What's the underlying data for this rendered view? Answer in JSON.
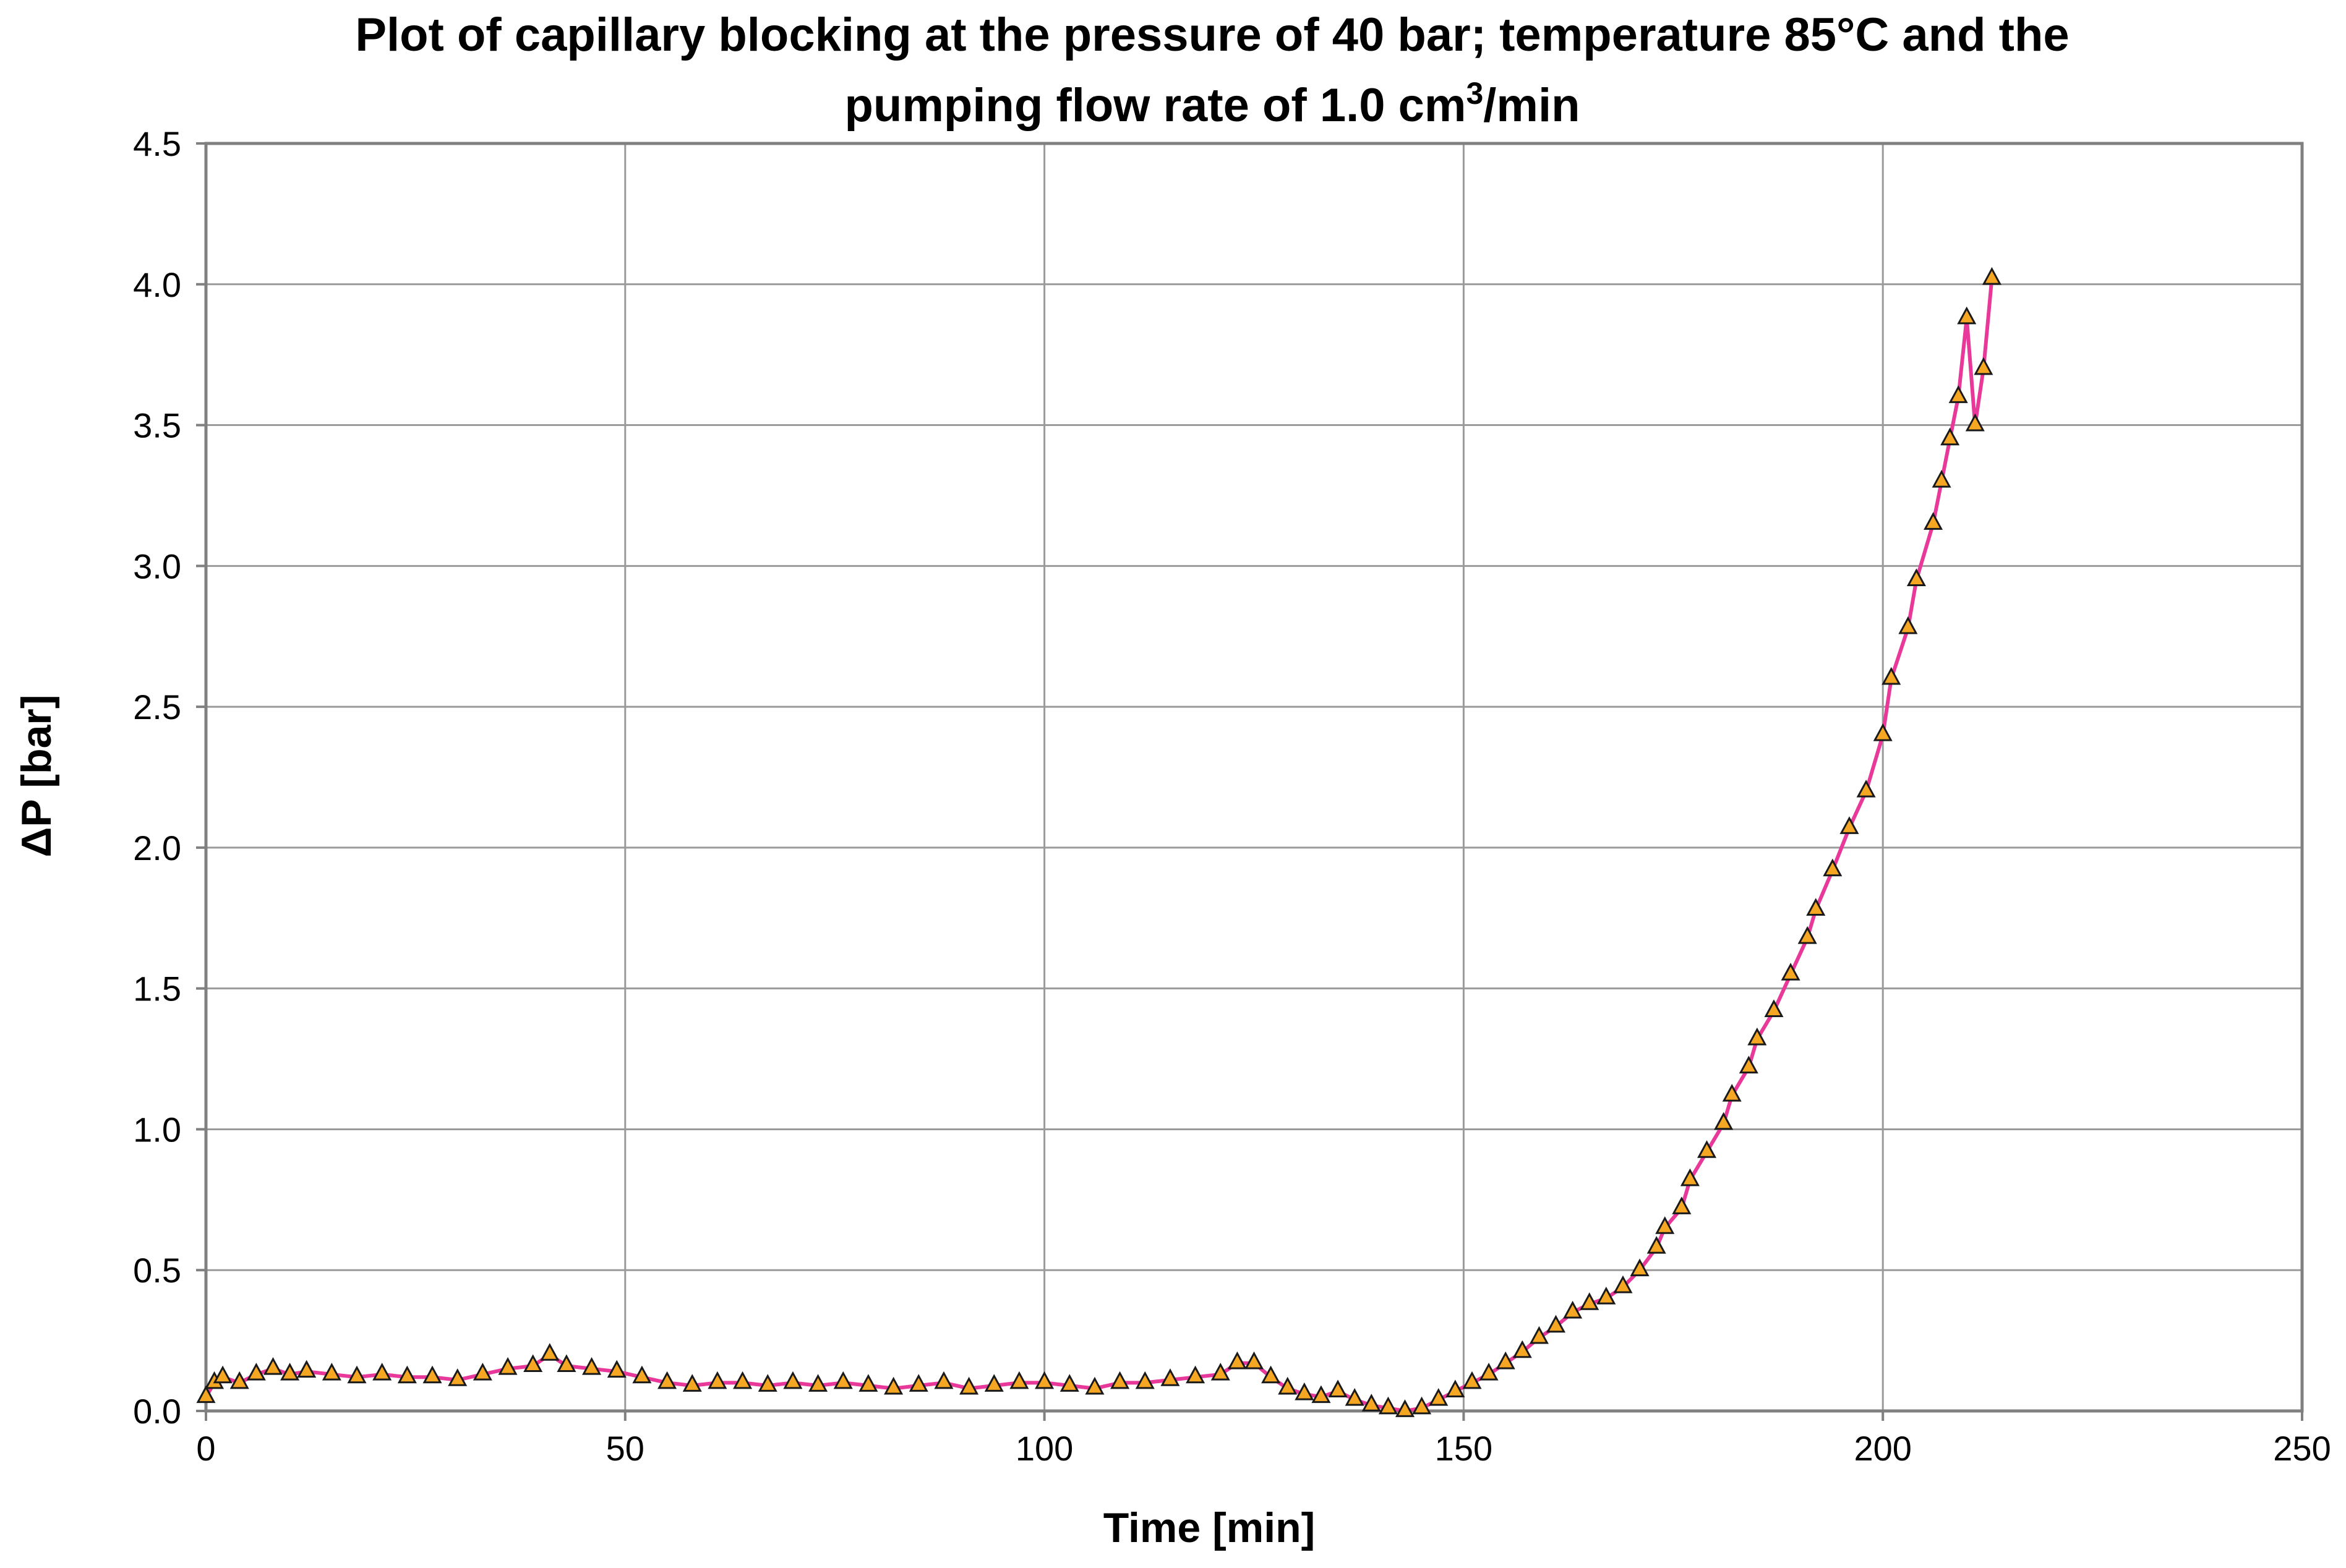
{
  "chart_data": {
    "type": "line",
    "title_line1": "Plot of capillary blocking at the pressure of 40 bar; temperature 85°C and the",
    "title_line2_prefix": "pumping flow rate of 1.0 cm",
    "title_superscript": "3",
    "title_line2_suffix": "/min",
    "xlabel": "Time [min]",
    "ylabel": "ΔP [bar]",
    "xlim": [
      0,
      250
    ],
    "ylim": [
      0,
      4.5
    ],
    "x_ticks": [
      "0",
      "50",
      "100",
      "150",
      "200",
      "250"
    ],
    "y_ticks": [
      "0.0",
      "0.5",
      "1.0",
      "1.5",
      "2.0",
      "2.5",
      "3.0",
      "3.5",
      "4.0",
      "4.5"
    ],
    "grid": true,
    "legend": "none",
    "colors": {
      "line": "#e8389a",
      "marker_fill": "#f5a623",
      "marker_edge": "#1a1a1a",
      "grid": "#9a9a9a",
      "axis": "#808080"
    },
    "series": [
      {
        "name": "ΔP",
        "marker": "triangle",
        "x": [
          0,
          1,
          2,
          4,
          6,
          8,
          10,
          12,
          15,
          18,
          21,
          24,
          27,
          30,
          33,
          36,
          39,
          41,
          43,
          46,
          49,
          52,
          55,
          58,
          61,
          64,
          67,
          70,
          73,
          76,
          79,
          82,
          85,
          88,
          91,
          94,
          97,
          100,
          103,
          106,
          109,
          112,
          115,
          118,
          121,
          123,
          125,
          127,
          129,
          131,
          133,
          135,
          137,
          139,
          141,
          143,
          145,
          147,
          149,
          151,
          153,
          155,
          157,
          159,
          161,
          163,
          165,
          167,
          169,
          171,
          173,
          174,
          176,
          177,
          179,
          181,
          182,
          184,
          185,
          187,
          189,
          191,
          192,
          194,
          196,
          198,
          200,
          201,
          203,
          204,
          206,
          207,
          208,
          209,
          210,
          211,
          212,
          213
        ],
        "y": [
          0.05,
          0.1,
          0.12,
          0.1,
          0.13,
          0.15,
          0.13,
          0.14,
          0.13,
          0.12,
          0.13,
          0.12,
          0.12,
          0.11,
          0.13,
          0.15,
          0.16,
          0.2,
          0.16,
          0.15,
          0.14,
          0.12,
          0.1,
          0.09,
          0.1,
          0.1,
          0.09,
          0.1,
          0.09,
          0.1,
          0.09,
          0.08,
          0.09,
          0.1,
          0.08,
          0.09,
          0.1,
          0.1,
          0.09,
          0.08,
          0.1,
          0.1,
          0.11,
          0.12,
          0.13,
          0.17,
          0.17,
          0.12,
          0.08,
          0.06,
          0.05,
          0.07,
          0.04,
          0.02,
          0.01,
          0.0,
          0.01,
          0.04,
          0.07,
          0.1,
          0.13,
          0.17,
          0.21,
          0.26,
          0.3,
          0.35,
          0.38,
          0.4,
          0.44,
          0.5,
          0.58,
          0.65,
          0.72,
          0.82,
          0.92,
          1.02,
          1.12,
          1.22,
          1.32,
          1.42,
          1.55,
          1.68,
          1.78,
          1.92,
          2.07,
          2.2,
          2.4,
          2.6,
          2.78,
          2.95,
          3.15,
          3.3,
          3.45,
          3.6,
          3.88,
          3.5,
          3.7,
          4.02
        ]
      }
    ]
  }
}
